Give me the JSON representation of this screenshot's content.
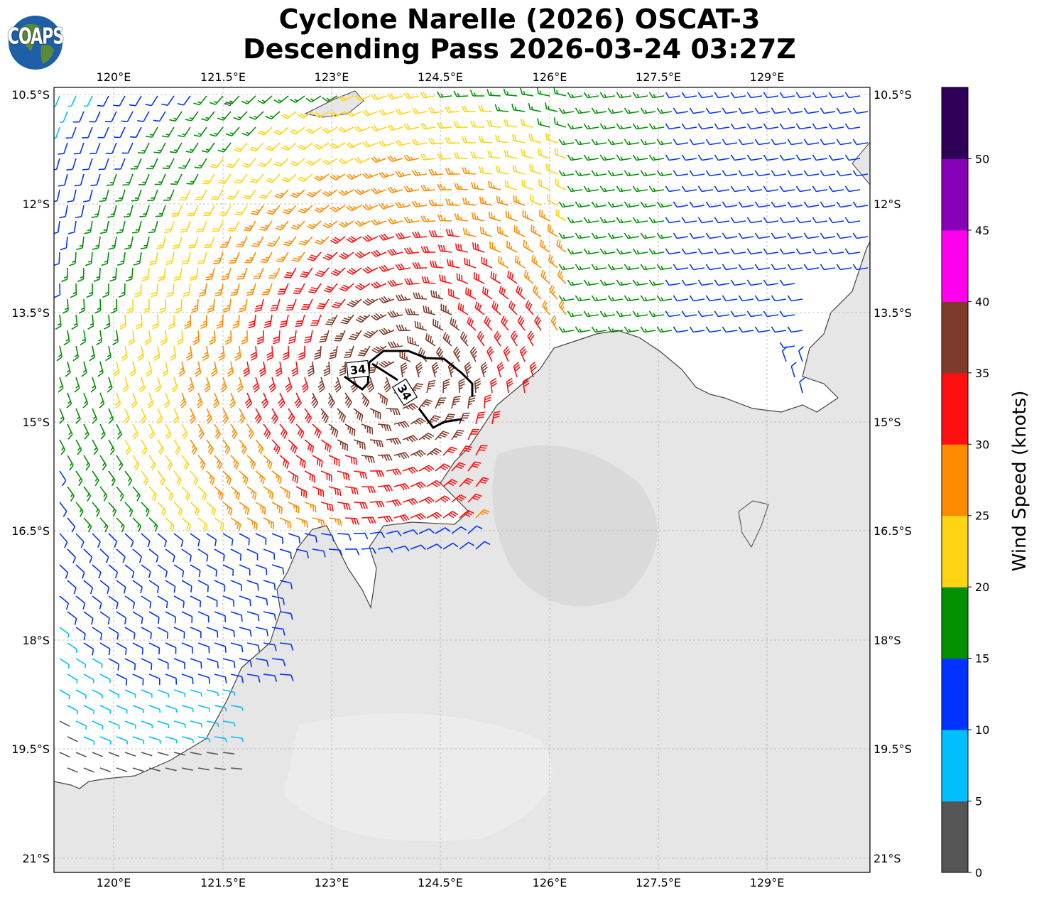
{
  "header": {
    "title_line1": "Cyclone Narelle (2026) OSCAT-3",
    "title_line2": "Descending Pass 2026-03-24 03:27Z"
  },
  "logo": {
    "text": "COAPS"
  },
  "map": {
    "lon_ticks": [
      "120°E",
      "121.5°E",
      "123°E",
      "124.5°E",
      "126°E",
      "127.5°E",
      "129°E"
    ],
    "lat_ticks": [
      "10.5°S",
      "12°S",
      "13.5°S",
      "15°S",
      "16.5°S",
      "18°S",
      "19.5°S",
      "21°S"
    ],
    "contour_labels": [
      "34",
      "34"
    ],
    "colors": {
      "land": "#e6e6e6",
      "coast": "#444444",
      "grid": "#b0b0b0",
      "contour": "#000000"
    }
  },
  "colorbar": {
    "label": "Wind Speed (knots)",
    "ticks": [
      "0",
      "5",
      "10",
      "15",
      "20",
      "25",
      "30",
      "35",
      "40",
      "45",
      "50"
    ],
    "bins": [
      {
        "from": 0,
        "to": 5,
        "color": "#555555"
      },
      {
        "from": 5,
        "to": 10,
        "color": "#00bfff"
      },
      {
        "from": 10,
        "to": 15,
        "color": "#0033ff"
      },
      {
        "from": 15,
        "to": 20,
        "color": "#009000"
      },
      {
        "from": 20,
        "to": 25,
        "color": "#ffd412"
      },
      {
        "from": 25,
        "to": 30,
        "color": "#ff8c00"
      },
      {
        "from": 30,
        "to": 35,
        "color": "#ff1010"
      },
      {
        "from": 35,
        "to": 40,
        "color": "#7f3b2a"
      },
      {
        "from": 40,
        "to": 45,
        "color": "#ff00ee"
      },
      {
        "from": 45,
        "to": 50,
        "color": "#8800b8"
      },
      {
        "from": 50,
        "to": 55,
        "color": "#2e0058"
      }
    ]
  }
}
